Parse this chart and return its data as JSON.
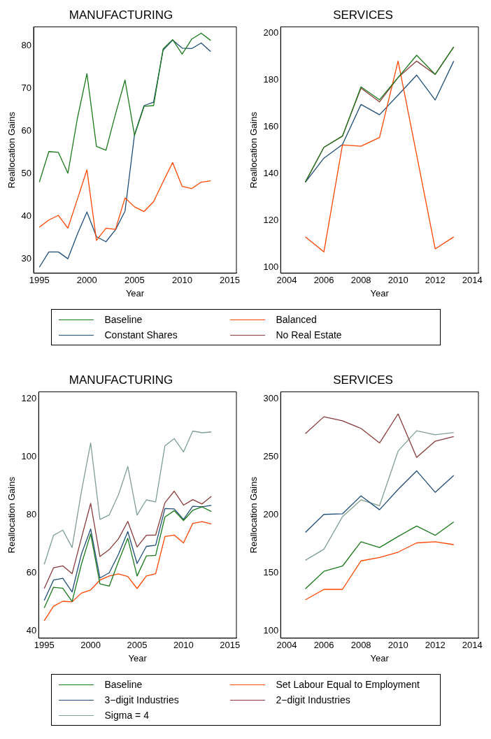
{
  "chart_data": [
    {
      "type": "line",
      "title": "MANUFACTURING",
      "xlabel": "Year",
      "ylabel": "Reallocation Gains",
      "x": [
        1995,
        1996,
        1997,
        1998,
        1999,
        2000,
        2001,
        2002,
        2003,
        2004,
        2005,
        2006,
        2007,
        2008,
        2009,
        2010,
        2011,
        2012,
        2013
      ],
      "xlim": [
        1994.4,
        2015.7
      ],
      "xticks": [
        1995,
        2000,
        2005,
        2010,
        2015
      ],
      "ylim": [
        26.6,
        84.5
      ],
      "yticks": [
        30,
        40,
        50,
        60,
        70,
        80
      ],
      "grid": false,
      "marker": "none",
      "series": [
        {
          "color": "#1a7a1a",
          "values": [
            48,
            55.2,
            55,
            50.1,
            63,
            73.5,
            56.4,
            55.5,
            64,
            72,
            59,
            65.8,
            66,
            79.3,
            81.5,
            78.1,
            81.6,
            83,
            81.3
          ]
        },
        {
          "color": "#ff4500",
          "values": [
            37.4,
            39.1,
            40.2,
            37.2,
            44,
            50.9,
            34.3,
            37.2,
            36.9,
            44.3,
            42.2,
            41.1,
            43.4,
            48.1,
            52.6,
            47,
            46.5,
            48,
            48.3
          ]
        },
        {
          "color": "#1f4e79",
          "values": [
            28,
            31.6,
            31.6,
            30,
            35.8,
            41,
            35.2,
            34,
            36.8,
            41.2,
            59.2,
            66,
            66.8,
            79,
            81.4,
            79.5,
            79.4,
            80.7,
            78.7
          ]
        }
      ]
    },
    {
      "type": "line",
      "title": "SERVICES",
      "xlabel": "Year",
      "ylabel": "Reallocation Gains",
      "x": [
        2005,
        2006,
        2007,
        2008,
        2009,
        2010,
        2011,
        2012,
        2013
      ],
      "xlim": [
        2003.67,
        2014.33
      ],
      "xticks": [
        2004,
        2006,
        2008,
        2010,
        2012,
        2014
      ],
      "ylim": [
        97.5,
        202.6
      ],
      "yticks": [
        100,
        120,
        140,
        160,
        180,
        200
      ],
      "grid": false,
      "legend": "bottom",
      "marker": "none",
      "series": [
        {
          "name": "Baseline",
          "color": "#1a7a1a",
          "values": [
            136.5,
            151.2,
            156,
            177,
            171.5,
            181,
            190.5,
            182.3,
            194
          ]
        },
        {
          "name": "Balanced",
          "color": "#ff4500",
          "values": [
            113,
            106.6,
            152.2,
            151.7,
            155.4,
            188,
            148,
            107.9,
            113
          ]
        },
        {
          "name": "Constant Shares",
          "color": "#1f4e79",
          "values": [
            136.3,
            146.6,
            152.4,
            169.5,
            165.1,
            173.5,
            182,
            171.4,
            188
          ]
        },
        {
          "name": "No Real Estate",
          "color": "#8b3a3a",
          "values": [
            136.3,
            151.2,
            156,
            176.5,
            170.6,
            181,
            188,
            182.3,
            194
          ]
        }
      ]
    },
    {
      "type": "line",
      "title": "MANUFACTURING",
      "xlabel": "Year",
      "ylabel": "Reallocation Gains",
      "x": [
        1995,
        1996,
        1997,
        1998,
        1999,
        2000,
        2001,
        2002,
        2003,
        2004,
        2005,
        2006,
        2007,
        2008,
        2009,
        2010,
        2011,
        2012,
        2013
      ],
      "xlim": [
        1994.4,
        2015.7
      ],
      "xticks": [
        1995,
        2000,
        2005,
        2010,
        2015
      ],
      "ylim": [
        37.6,
        122.4
      ],
      "yticks": [
        40,
        60,
        80,
        100,
        120
      ],
      "grid": false,
      "marker": "none",
      "series": [
        {
          "color": "#1a7a1a",
          "values": [
            48,
            55.1,
            54.8,
            50.2,
            63,
            73.5,
            56.3,
            55.5,
            64,
            72,
            59,
            65.9,
            66.1,
            79.3,
            81.5,
            78.1,
            81.6,
            82.8,
            81.2
          ]
        },
        {
          "color": "#ff4500",
          "values": [
            43.6,
            48.6,
            50.3,
            50.1,
            53.1,
            54.2,
            57.6,
            59,
            59.7,
            58.8,
            54.7,
            59,
            59.8,
            72.6,
            73.1,
            70.4,
            77.1,
            77.7,
            76.9
          ]
        },
        {
          "color": "#1f4e79",
          "values": [
            50.6,
            57.6,
            58.2,
            53.5,
            66.5,
            75.2,
            58.3,
            60.1,
            66.5,
            74.3,
            63.3,
            69.2,
            69.6,
            82.2,
            82.1,
            78.5,
            83,
            82.8,
            83.3
          ]
        },
        {
          "color": "#8b3a3a",
          "values": [
            54.7,
            61.8,
            62.5,
            59.8,
            72,
            84,
            65.7,
            68.1,
            71.8,
            77.8,
            69,
            73,
            73.1,
            84.2,
            88.2,
            83.4,
            85.3,
            83.8,
            86.4
          ]
        },
        {
          "color": "#7f9f8f",
          "values": [
            63,
            73,
            74.8,
            68.8,
            88,
            104.8,
            78.5,
            80,
            87,
            96.7,
            80,
            85.2,
            84.5,
            103.8,
            106.3,
            101.7,
            108.9,
            108.3,
            108.6
          ]
        }
      ]
    },
    {
      "type": "line",
      "title": "SERVICES",
      "xlabel": "Year",
      "ylabel": "Reallocation Gains",
      "x": [
        2005,
        2006,
        2007,
        2008,
        2009,
        2010,
        2011,
        2012,
        2013
      ],
      "xlim": [
        2003.67,
        2014.33
      ],
      "xticks": [
        2004,
        2006,
        2008,
        2010,
        2012,
        2014
      ],
      "ylim": [
        94,
        306
      ],
      "yticks": [
        100,
        150,
        200,
        250,
        300
      ],
      "grid": false,
      "legend": "bottom",
      "marker": "none",
      "series": [
        {
          "name": "Baseline",
          "color": "#1a7a1a",
          "values": [
            136.5,
            151.5,
            156,
            177,
            172,
            181.5,
            190.5,
            182.5,
            194
          ]
        },
        {
          "name": "Set Labour Equal to Employment",
          "color": "#ff4500",
          "values": [
            127,
            136,
            136,
            160.5,
            163.5,
            168,
            176,
            177,
            174.5
          ]
        },
        {
          "name": "3−digit Industries",
          "color": "#1f4e79",
          "values": [
            185,
            200.5,
            201,
            216.5,
            204.5,
            222,
            238,
            219.5,
            234
          ]
        },
        {
          "name": "2−digit Industries",
          "color": "#8b3a3a",
          "values": [
            270,
            284.5,
            281,
            274.5,
            262,
            287,
            249.5,
            263.5,
            267.5
          ]
        },
        {
          "name": "Sigma = 4",
          "color": "#7f9f8f",
          "values": [
            161,
            170.5,
            198.5,
            213,
            208,
            255,
            272.5,
            269,
            271
          ]
        }
      ]
    }
  ]
}
